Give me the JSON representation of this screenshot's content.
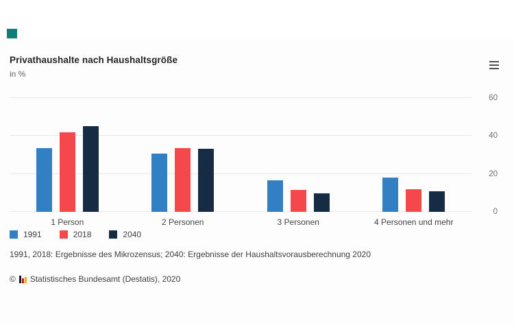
{
  "page": {
    "brand_square_color": "#0f7e7a"
  },
  "header": {
    "title": "Privathaushalte nach Haushaltsgröße",
    "subtitle": "in %",
    "menu_icon": "hamburger-icon"
  },
  "chart_data": {
    "type": "bar",
    "title": "Privathaushalte nach Haushaltsgröße",
    "subtitle": "in %",
    "categories": [
      "1 Person",
      "2 Personen",
      "3 Personen",
      "4 Personen und mehr"
    ],
    "series": [
      {
        "name": "1991",
        "color": "#337fc4",
        "values": [
          33.6,
          30.8,
          16.8,
          18.0
        ]
      },
      {
        "name": "2018",
        "color": "#f5484d",
        "values": [
          41.9,
          33.8,
          11.5,
          12.0
        ]
      },
      {
        "name": "2040",
        "color": "#152c44",
        "values": [
          45.3,
          33.2,
          9.8,
          11.0
        ]
      }
    ],
    "ylim": [
      0,
      60
    ],
    "yticks": [
      0,
      20,
      40,
      60
    ],
    "ylabel": "",
    "xlabel": "",
    "grid": true,
    "axis_side": "right",
    "legend_position": "bottom-left"
  },
  "footer": {
    "footnote": "1991, 2018: Ergebnisse des Mikrozensus; 2040: Ergebnisse der Haushaltsvorausberechnung 2020",
    "copyright_prefix": "©",
    "copyright_text": "Statistisches Bundesamt (Destatis), 2020"
  }
}
